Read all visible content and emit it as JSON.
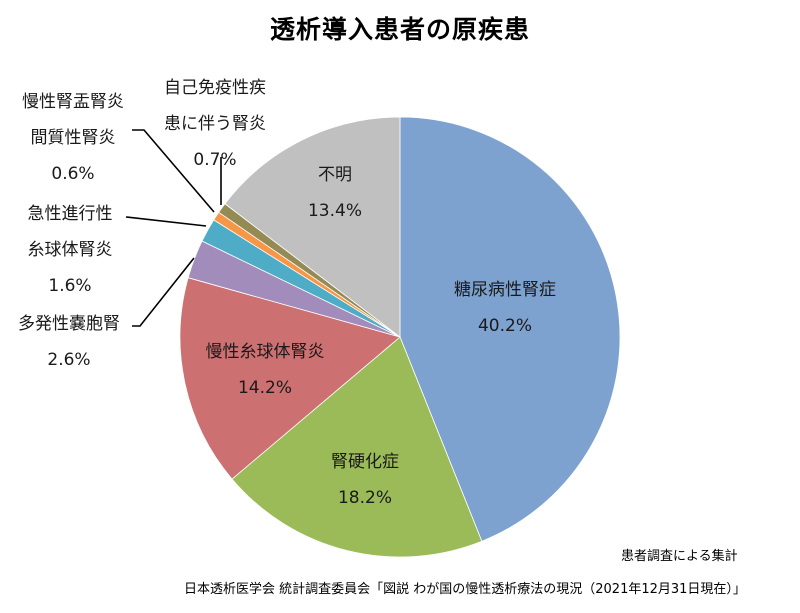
{
  "chart_data": {
    "type": "pie",
    "title": "透析導入患者の原疾患",
    "start_angle_deg": 0,
    "direction": "clockwise",
    "slices": [
      {
        "label": "糖尿病性腎症",
        "value": 40.2,
        "display": "40.2%",
        "color": "#7ea2d0"
      },
      {
        "label": "腎硬化症",
        "value": 18.2,
        "display": "18.2%",
        "color": "#9bbb59"
      },
      {
        "label": "慢性糸球体腎炎",
        "value": 14.2,
        "display": "14.2%",
        "color": "#cd7071"
      },
      {
        "label": "多発性嚢胞腎",
        "value": 2.6,
        "display": "2.6%",
        "color": "#a18cbc"
      },
      {
        "label": "急性進行性糸球体腎炎",
        "value": 1.6,
        "display": "1.6%",
        "color": "#4facc6"
      },
      {
        "label": "慢性腎盂腎炎間質性腎炎",
        "value": 0.6,
        "display": "0.6%",
        "color": "#f79646"
      },
      {
        "label": "自己免疫性疾患に伴う腎炎",
        "value": 0.7,
        "display": "0.7%",
        "color": "#948a54"
      },
      {
        "label": "不明",
        "value": 13.4,
        "display": "13.4%",
        "color": "#c0c0c0"
      }
    ],
    "legend": "none (data labels)"
  },
  "labels": {
    "diabetic": {
      "line1": "糖尿病性腎症",
      "line2": "40.2%"
    },
    "nephrosclerosis": {
      "line1": "腎硬化症",
      "line2": "18.2%"
    },
    "chronic_gn": {
      "line1": "慢性糸球体腎炎",
      "line2": "14.2%"
    },
    "pkd": {
      "line1": "多発性嚢胞腎",
      "line2": "2.6%"
    },
    "rpgn": {
      "line1": "急性進行性",
      "line2": "糸球体腎炎",
      "line3": "1.6%"
    },
    "pyelo": {
      "line1": "慢性腎盂腎炎",
      "line2": "間質性腎炎",
      "line3": "0.6%"
    },
    "autoimmune": {
      "line1": "自己免疫性疾",
      "line2": "患に伴う腎炎",
      "line3": "0.7%"
    },
    "unknown": {
      "line1": "不明",
      "line2": "13.4%"
    }
  },
  "notes": {
    "aggregation": "患者調査による集計",
    "source": "日本透析医学会 統計調査委員会「図説 わが国の慢性透析療法の現況（2021年12月31日現在）」"
  }
}
